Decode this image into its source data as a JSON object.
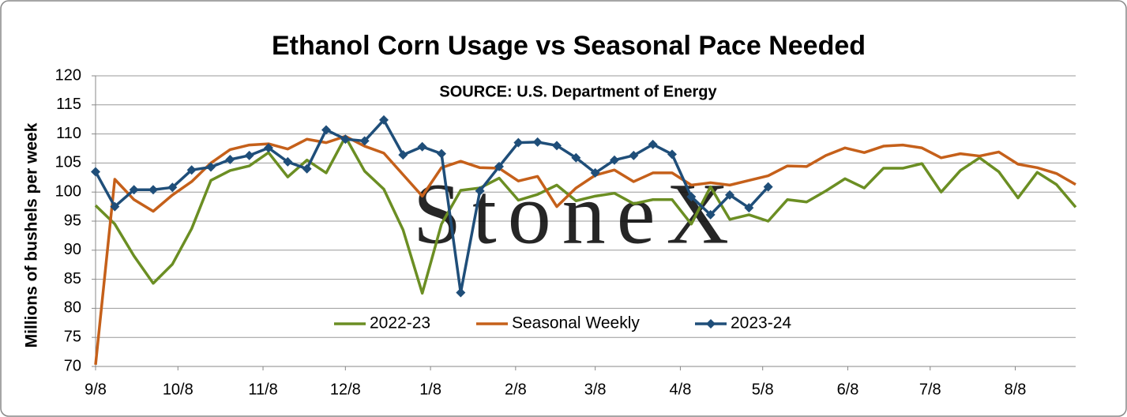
{
  "chart_data": {
    "type": "line",
    "title": "Ethanol Corn Usage vs Seasonal Pace Needed",
    "subtitle": "SOURCE: U.S. Department of Energy",
    "watermark": "StoneX",
    "y_label": "Millions of bushels per week",
    "categories": [
      null,
      null,
      null,
      null,
      null,
      null,
      null,
      null,
      null,
      null,
      null,
      null,
      null,
      null,
      null,
      null,
      null,
      null,
      null,
      null,
      null,
      null,
      null,
      null,
      null,
      null,
      null,
      null,
      null,
      null,
      null,
      null,
      null,
      null,
      null,
      null,
      null,
      null,
      null,
      null,
      null,
      null,
      null,
      null,
      null,
      null,
      null,
      null,
      null,
      null,
      null,
      null
    ],
    "xlim": [
      0,
      51
    ],
    "xticks": [
      {
        "value": 0,
        "label": "9/8"
      },
      {
        "value": 4.286,
        "label": "10/8"
      },
      {
        "value": 8.714,
        "label": "11/8"
      },
      {
        "value": 13,
        "label": "12/8"
      },
      {
        "value": 17.429,
        "label": "1/8"
      },
      {
        "value": 21.857,
        "label": "2/8"
      },
      {
        "value": 26,
        "label": "3/8"
      },
      {
        "value": 30.429,
        "label": "4/8"
      },
      {
        "value": 34.714,
        "label": "5/8"
      },
      {
        "value": 39.143,
        "label": "6/8"
      },
      {
        "value": 43.429,
        "label": "7/8"
      },
      {
        "value": 47.857,
        "label": "8/8"
      }
    ],
    "ylim": [
      70,
      120
    ],
    "yticks": [
      70,
      75,
      80,
      85,
      90,
      95,
      100,
      105,
      110,
      115,
      120
    ],
    "grid": true,
    "legend": "bottom",
    "series": [
      {
        "name": "2022-23",
        "color": "#6b8e23",
        "marker": false,
        "values": [
          97.7,
          94.5,
          89,
          84.3,
          87.6,
          93.7,
          102,
          103.7,
          104.5,
          106.8,
          102.6,
          105.5,
          103.3,
          109.5,
          103.6,
          100.5,
          93.5,
          82.6,
          94.5,
          100.3,
          100.7,
          102.4,
          98.6,
          99.6,
          101.2,
          98.5,
          99.3,
          99.8,
          98,
          98.7,
          98.7,
          94.5,
          100.9,
          95.3,
          96.1,
          95,
          98.7,
          98.3,
          100.2,
          102.3,
          100.7,
          104.1,
          104.1,
          104.9,
          100,
          103.7,
          105.9,
          103.5,
          99,
          103.4,
          101.3,
          97.4
        ]
      },
      {
        "name": "Seasonal Weekly",
        "color": "#c5601a",
        "marker": false,
        "values": [
          70.3,
          102.2,
          98.7,
          96.7,
          99.5,
          101.8,
          105,
          107.3,
          108.1,
          108.3,
          107.4,
          109.1,
          108.5,
          109.6,
          107.9,
          106.7,
          103,
          99.3,
          104.2,
          105.3,
          104.2,
          104.1,
          101.9,
          102.7,
          97.5,
          100.7,
          102.9,
          103.8,
          101.8,
          103.3,
          103.3,
          101.2,
          101.6,
          101.2,
          102,
          102.8,
          104.5,
          104.4,
          106.3,
          107.6,
          106.8,
          107.9,
          108.1,
          107.6,
          105.9,
          106.6,
          106.2,
          106.9,
          104.8,
          104.2,
          103.2,
          101.3
        ]
      },
      {
        "name": "2023-24",
        "color": "#1f4e79",
        "marker": true,
        "values": [
          103.5,
          97.5,
          100.4,
          100.4,
          100.8,
          103.8,
          104.3,
          105.6,
          106.3,
          107.6,
          105.2,
          104,
          110.7,
          109.1,
          108.8,
          112.4,
          106.4,
          107.8,
          106.6,
          82.7,
          100.2,
          104.4,
          108.5,
          108.6,
          108,
          105.9,
          103.3,
          105.5,
          106.3,
          108.2,
          106.5,
          99.2,
          96.1,
          99.5,
          97.3,
          100.9,
          null,
          null,
          null,
          null,
          null,
          null,
          null,
          null,
          null,
          null,
          null,
          null,
          null,
          null,
          null,
          null
        ]
      }
    ]
  }
}
